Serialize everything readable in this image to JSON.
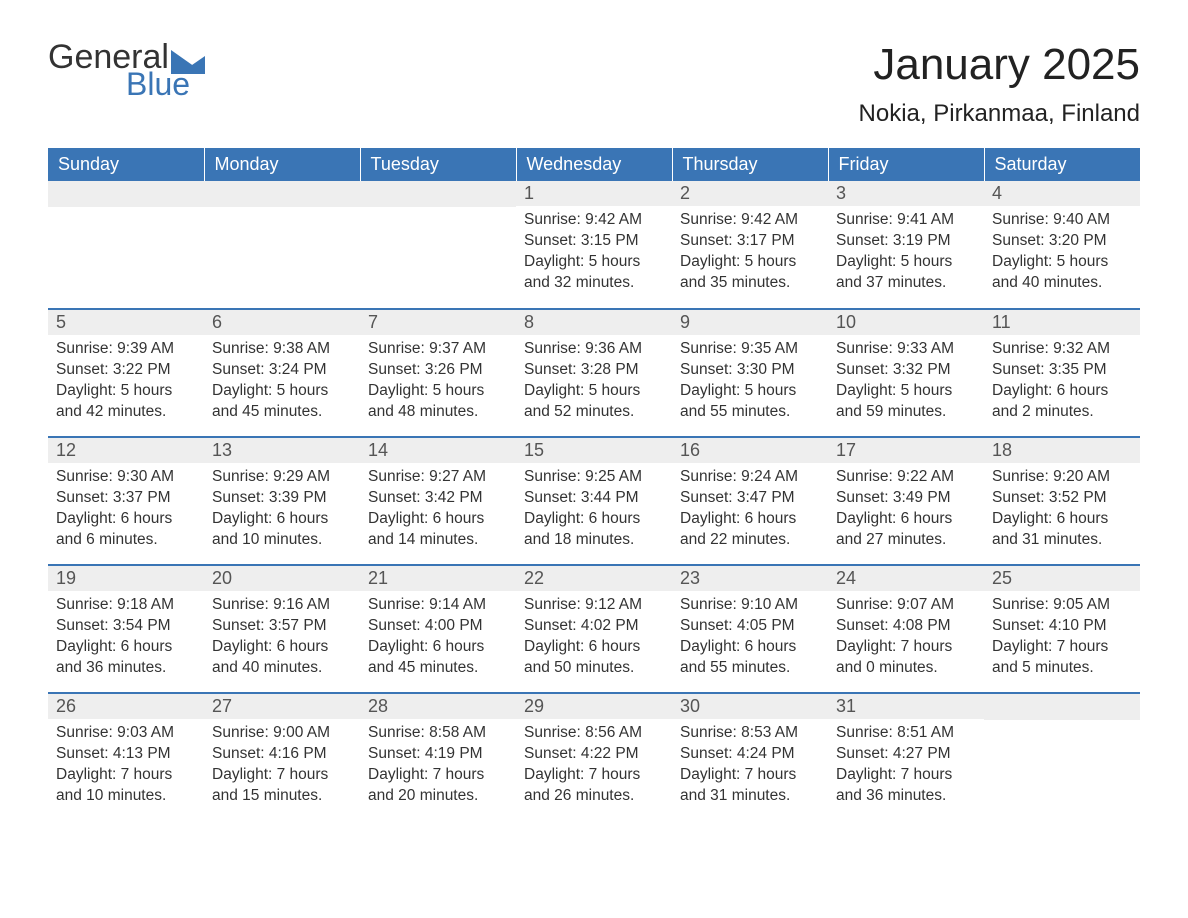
{
  "brand": {
    "word1": "General",
    "word2": "Blue",
    "text_color": "#333333",
    "accent_color": "#3a75b5"
  },
  "title": "January 2025",
  "location": "Nokia, Pirkanmaa, Finland",
  "colors": {
    "header_bg": "#3a75b5",
    "header_text": "#ffffff",
    "daynum_bg": "#eeeeee",
    "row_divider": "#3a75b5",
    "body_text": "#333333",
    "page_bg": "#ffffff"
  },
  "typography": {
    "title_fontsize": 44,
    "location_fontsize": 24,
    "header_fontsize": 18,
    "daynum_fontsize": 18,
    "body_fontsize": 15.5,
    "font_family": "Arial"
  },
  "weekday_headers": [
    "Sunday",
    "Monday",
    "Tuesday",
    "Wednesday",
    "Thursday",
    "Friday",
    "Saturday"
  ],
  "layout": {
    "first_weekday_index": 3,
    "days_in_month": 31,
    "rows": 5,
    "cols": 7
  },
  "days": {
    "1": {
      "sunrise": "9:42 AM",
      "sunset": "3:15 PM",
      "daylight": "5 hours and 32 minutes."
    },
    "2": {
      "sunrise": "9:42 AM",
      "sunset": "3:17 PM",
      "daylight": "5 hours and 35 minutes."
    },
    "3": {
      "sunrise": "9:41 AM",
      "sunset": "3:19 PM",
      "daylight": "5 hours and 37 minutes."
    },
    "4": {
      "sunrise": "9:40 AM",
      "sunset": "3:20 PM",
      "daylight": "5 hours and 40 minutes."
    },
    "5": {
      "sunrise": "9:39 AM",
      "sunset": "3:22 PM",
      "daylight": "5 hours and 42 minutes."
    },
    "6": {
      "sunrise": "9:38 AM",
      "sunset": "3:24 PM",
      "daylight": "5 hours and 45 minutes."
    },
    "7": {
      "sunrise": "9:37 AM",
      "sunset": "3:26 PM",
      "daylight": "5 hours and 48 minutes."
    },
    "8": {
      "sunrise": "9:36 AM",
      "sunset": "3:28 PM",
      "daylight": "5 hours and 52 minutes."
    },
    "9": {
      "sunrise": "9:35 AM",
      "sunset": "3:30 PM",
      "daylight": "5 hours and 55 minutes."
    },
    "10": {
      "sunrise": "9:33 AM",
      "sunset": "3:32 PM",
      "daylight": "5 hours and 59 minutes."
    },
    "11": {
      "sunrise": "9:32 AM",
      "sunset": "3:35 PM",
      "daylight": "6 hours and 2 minutes."
    },
    "12": {
      "sunrise": "9:30 AM",
      "sunset": "3:37 PM",
      "daylight": "6 hours and 6 minutes."
    },
    "13": {
      "sunrise": "9:29 AM",
      "sunset": "3:39 PM",
      "daylight": "6 hours and 10 minutes."
    },
    "14": {
      "sunrise": "9:27 AM",
      "sunset": "3:42 PM",
      "daylight": "6 hours and 14 minutes."
    },
    "15": {
      "sunrise": "9:25 AM",
      "sunset": "3:44 PM",
      "daylight": "6 hours and 18 minutes."
    },
    "16": {
      "sunrise": "9:24 AM",
      "sunset": "3:47 PM",
      "daylight": "6 hours and 22 minutes."
    },
    "17": {
      "sunrise": "9:22 AM",
      "sunset": "3:49 PM",
      "daylight": "6 hours and 27 minutes."
    },
    "18": {
      "sunrise": "9:20 AM",
      "sunset": "3:52 PM",
      "daylight": "6 hours and 31 minutes."
    },
    "19": {
      "sunrise": "9:18 AM",
      "sunset": "3:54 PM",
      "daylight": "6 hours and 36 minutes."
    },
    "20": {
      "sunrise": "9:16 AM",
      "sunset": "3:57 PM",
      "daylight": "6 hours and 40 minutes."
    },
    "21": {
      "sunrise": "9:14 AM",
      "sunset": "4:00 PM",
      "daylight": "6 hours and 45 minutes."
    },
    "22": {
      "sunrise": "9:12 AM",
      "sunset": "4:02 PM",
      "daylight": "6 hours and 50 minutes."
    },
    "23": {
      "sunrise": "9:10 AM",
      "sunset": "4:05 PM",
      "daylight": "6 hours and 55 minutes."
    },
    "24": {
      "sunrise": "9:07 AM",
      "sunset": "4:08 PM",
      "daylight": "7 hours and 0 minutes."
    },
    "25": {
      "sunrise": "9:05 AM",
      "sunset": "4:10 PM",
      "daylight": "7 hours and 5 minutes."
    },
    "26": {
      "sunrise": "9:03 AM",
      "sunset": "4:13 PM",
      "daylight": "7 hours and 10 minutes."
    },
    "27": {
      "sunrise": "9:00 AM",
      "sunset": "4:16 PM",
      "daylight": "7 hours and 15 minutes."
    },
    "28": {
      "sunrise": "8:58 AM",
      "sunset": "4:19 PM",
      "daylight": "7 hours and 20 minutes."
    },
    "29": {
      "sunrise": "8:56 AM",
      "sunset": "4:22 PM",
      "daylight": "7 hours and 26 minutes."
    },
    "30": {
      "sunrise": "8:53 AM",
      "sunset": "4:24 PM",
      "daylight": "7 hours and 31 minutes."
    },
    "31": {
      "sunrise": "8:51 AM",
      "sunset": "4:27 PM",
      "daylight": "7 hours and 36 minutes."
    }
  },
  "labels": {
    "sunrise_prefix": "Sunrise: ",
    "sunset_prefix": "Sunset: ",
    "daylight_prefix": "Daylight: "
  }
}
